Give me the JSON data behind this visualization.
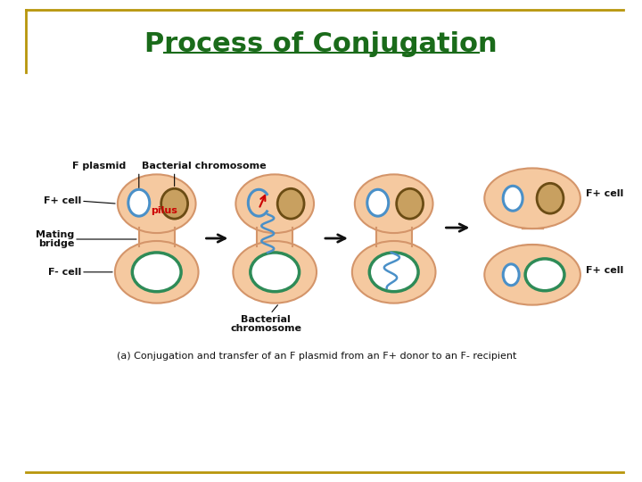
{
  "title": "Process of Conjugation",
  "title_color": "#1a6b1a",
  "title_fontsize": 22,
  "bg_color": "#ffffff",
  "border_color": "#b8960c",
  "cell_fill": "#F5C9A0",
  "cell_border": "#D4956A",
  "f_plasmid_color": "#4A90C8",
  "bact_chr_fill": "#C8A060",
  "bact_chr_edge": "#6B4C14",
  "f_minus_color": "#2E8B57",
  "pilus_text_color": "#CC0000",
  "red_arrow_color": "#CC0000",
  "arrow_color": "#111111",
  "label_color": "#111111",
  "caption_text": "(a) Conjugation and transfer of an F plasmid from an F+ donor to an F- recipient",
  "lbl_f_plasmid": "F plasmid",
  "lbl_bact_chr": "Bacterial chromosome",
  "lbl_fplus": "F+ cell",
  "lbl_mating": "Mating",
  "lbl_bridge": "bridge",
  "lbl_fminus": "F- cell",
  "lbl_bact_chr2": "Bacterial",
  "lbl_bact_chr3": "chromosome",
  "lbl_pilus": "pilus",
  "lbl_fplus_r1": "F+ cell",
  "lbl_fplus_r2": "F+ cell"
}
